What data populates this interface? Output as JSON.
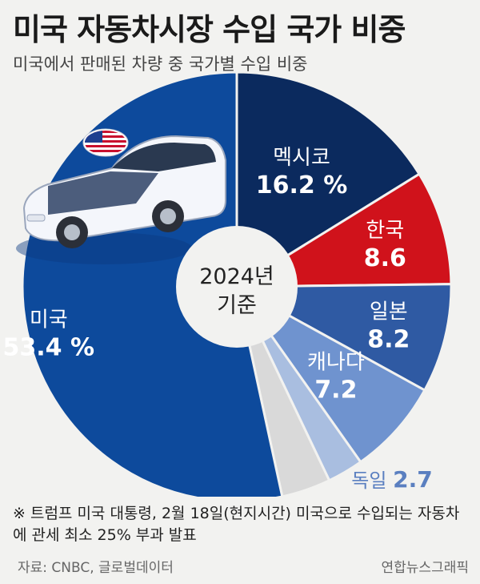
{
  "title": "미국 자동차시장 수입 국가 비중",
  "subtitle": "미국에서 판매된 차량 중 국가별 수입 비중",
  "chart_data": {
    "type": "pie",
    "title": "미국 자동차시장 수입 국가 비중",
    "subtitle": "미국에서 판매된 차량 중 국가별 수입 비중",
    "center_label": [
      "2024년",
      "기준"
    ],
    "slices": [
      {
        "name": "멕시코",
        "value": 16.2,
        "label": "16.2",
        "unit": "%",
        "color": "#0b2a5e"
      },
      {
        "name": "한국",
        "value": 8.6,
        "label": "8.6",
        "unit": "",
        "color": "#d0121b"
      },
      {
        "name": "일본",
        "value": 8.2,
        "label": "8.2",
        "unit": "",
        "color": "#2f5aa3"
      },
      {
        "name": "캐나다",
        "value": 7.2,
        "label": "7.2",
        "unit": "",
        "color": "#6f93cf"
      },
      {
        "name": "독일",
        "value": 2.7,
        "label": "2.7",
        "unit": "",
        "color": "#a9bee0"
      },
      {
        "name": "",
        "value": 3.7,
        "label": "",
        "unit": "",
        "color": "#d9d9d9"
      },
      {
        "name": "미국",
        "value": 53.4,
        "label": "53.4",
        "unit": "%",
        "color": "#0d4a9c"
      }
    ]
  },
  "note": "※ 트럼프 미국 대통령, 2월 18일(현지시간) 미국으로 수입되는 자동차에 관세 최소 25% 부과 발표",
  "source": "자료: CNBC, 글로벌데이터",
  "credit": "연합뉴스그래픽"
}
